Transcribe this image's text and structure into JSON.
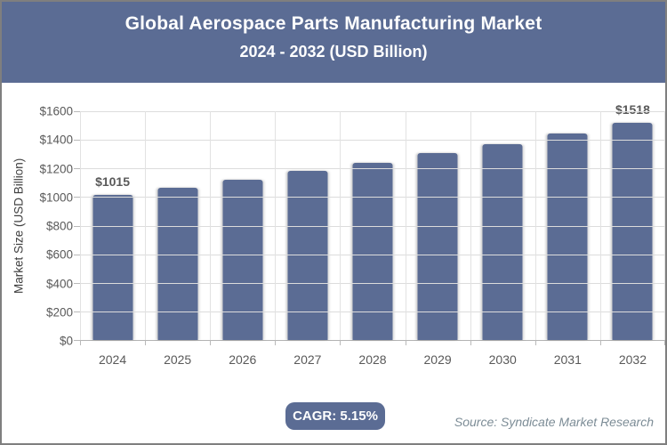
{
  "header": {
    "title_line1": "Global Aerospace Parts Manufacturing Market",
    "title_line2": "2024 - 2032 (USD Billion)"
  },
  "chart_data": {
    "type": "bar",
    "title": "Global Aerospace Parts Manufacturing Market 2024 - 2032 (USD Billion)",
    "categories": [
      "2024",
      "2025",
      "2026",
      "2027",
      "2028",
      "2029",
      "2030",
      "2031",
      "2032"
    ],
    "values": [
      1015,
      1067,
      1122,
      1180,
      1241,
      1305,
      1372,
      1443,
      1518
    ],
    "data_labels": [
      "$1015",
      "",
      "",
      "",
      "",
      "",
      "",
      "",
      "$1518"
    ],
    "xlabel": "",
    "ylabel": "Market Size (USD Billion)",
    "ylim": [
      0,
      1600
    ],
    "ytick_step": 200,
    "ytick_labels": [
      "$1600",
      "$1400",
      "$1200",
      "$1000",
      "$800",
      "$600",
      "$400",
      "$200",
      "$0"
    ],
    "grid": true,
    "legend_position": "none"
  },
  "footer": {
    "cagr_label": "CAGR: 5.15%",
    "source": "Source: Syndicate Market Research"
  },
  "colors": {
    "accent_slate_blue": "#5b6c94",
    "grid_line": "#dcdcdc",
    "axis_line": "#b3b3b3",
    "tick_text": "#595959",
    "source_text": "#7c8c96",
    "frame_border": "#7f7f7f",
    "header_text": "#ffffff"
  }
}
